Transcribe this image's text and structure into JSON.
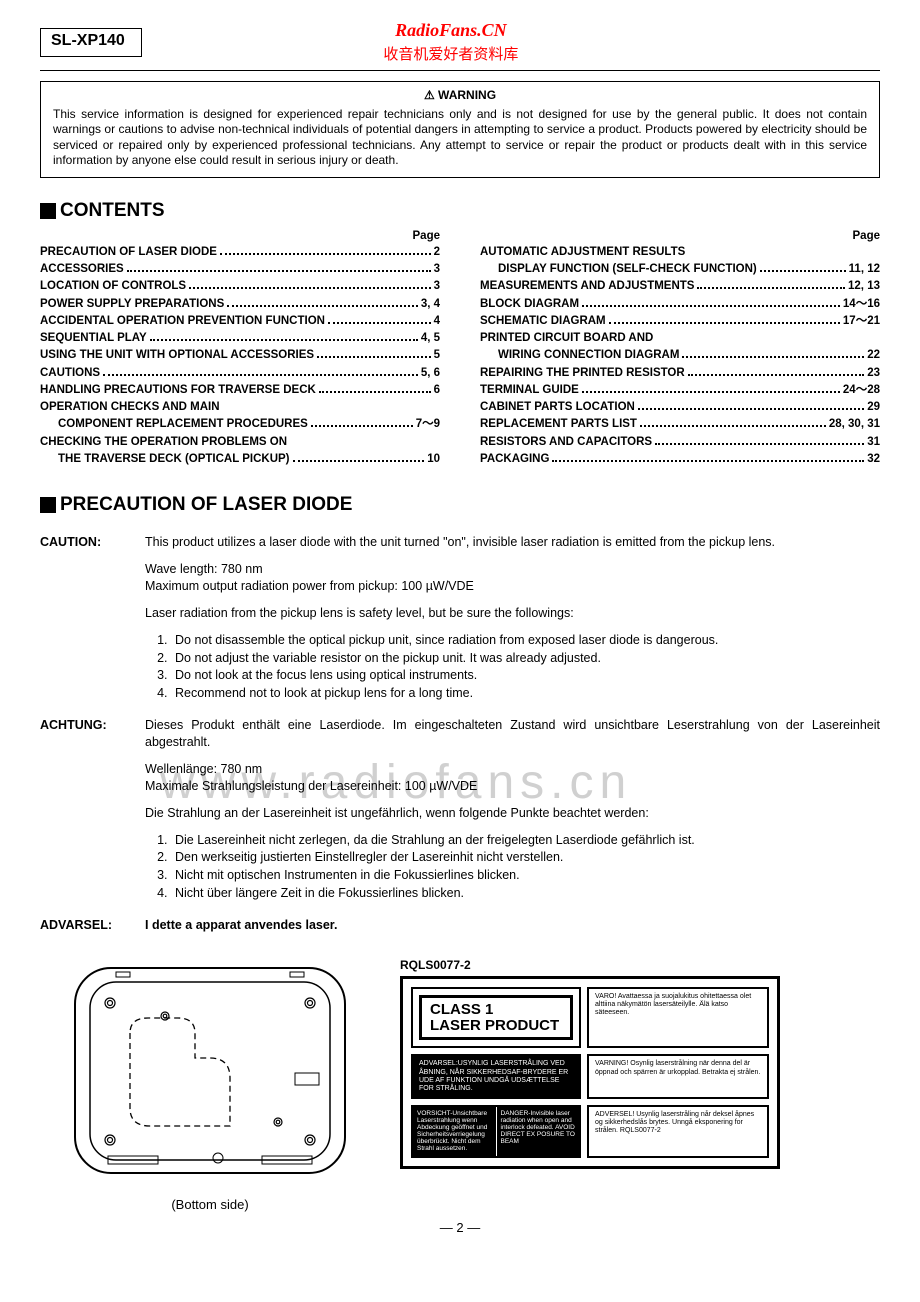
{
  "header": {
    "model": "SL-XP140",
    "site_name": "RadioFans.CN",
    "site_sub": "收音机爱好者资料库"
  },
  "warning": {
    "title": "⚠ WARNING",
    "body": "This service information is designed for experienced repair technicians only and is not designed for use by the general public. It does not contain warnings or cautions to advise non-technical individuals of potential dangers in attempting to service a product. Products powered by electricity should be serviced or repaired only by experienced professional technicians. Any attempt to service or repair the product or products dealt with in this service information by anyone else could result in serious injury or death."
  },
  "sections": {
    "contents": "CONTENTS",
    "precaution": "PRECAUTION OF LASER DIODE"
  },
  "toc": {
    "page_label": "Page",
    "left": [
      {
        "label": "PRECAUTION OF LASER DIODE",
        "page": "2"
      },
      {
        "label": "ACCESSORIES",
        "page": "3"
      },
      {
        "label": "LOCATION OF CONTROLS",
        "page": "3"
      },
      {
        "label": "POWER SUPPLY PREPARATIONS",
        "page": "3, 4"
      },
      {
        "label": "ACCIDENTAL OPERATION PREVENTION FUNCTION",
        "page": "4"
      },
      {
        "label": "SEQUENTIAL PLAY",
        "page": "4, 5"
      },
      {
        "label": "USING THE UNIT WITH OPTIONAL ACCESSORIES",
        "page": "5"
      },
      {
        "label": "CAUTIONS",
        "page": "5, 6"
      },
      {
        "label": "HANDLING PRECAUTIONS FOR TRAVERSE DECK",
        "page": "6"
      },
      {
        "label": "OPERATION CHECKS AND MAIN",
        "page": "",
        "nolead": true
      },
      {
        "label": "COMPONENT REPLACEMENT PROCEDURES",
        "page": "7～9",
        "indent": true
      },
      {
        "label": "CHECKING THE OPERATION PROBLEMS ON",
        "page": "",
        "nolead": true
      },
      {
        "label": "THE TRAVERSE DECK (OPTICAL PICKUP)",
        "page": "10",
        "indent": true
      }
    ],
    "right": [
      {
        "label": "AUTOMATIC ADJUSTMENT RESULTS",
        "page": "",
        "nolead": true
      },
      {
        "label": "DISPLAY FUNCTION (SELF-CHECK FUNCTION)",
        "page": "11, 12",
        "indent": true
      },
      {
        "label": "MEASUREMENTS AND ADJUSTMENTS",
        "page": "12, 13"
      },
      {
        "label": "BLOCK DIAGRAM",
        "page": "14～16"
      },
      {
        "label": "SCHEMATIC DIAGRAM",
        "page": "17～21"
      },
      {
        "label": "PRINTED CIRCUIT BOARD AND",
        "page": "",
        "nolead": true
      },
      {
        "label": "WIRING CONNECTION DIAGRAM",
        "page": "22",
        "indent": true
      },
      {
        "label": "REPAIRING THE PRINTED RESISTOR",
        "page": "23"
      },
      {
        "label": "TERMINAL GUIDE",
        "page": "24～28"
      },
      {
        "label": "CABINET PARTS LOCATION",
        "page": "29"
      },
      {
        "label": "REPLACEMENT PARTS LIST",
        "page": "28, 30, 31"
      },
      {
        "label": "RESISTORS AND CAPACITORS",
        "page": "31"
      },
      {
        "label": "PACKAGING",
        "page": "32"
      }
    ]
  },
  "precaution": {
    "caution_label": "CAUTION:",
    "caution_p1": "This product utilizes a laser diode with the unit turned \"on\", invisible laser radiation is emitted from the pickup lens.",
    "caution_p2": "Wave length: 780 nm",
    "caution_p3": "Maximum output radiation power from pickup: 100 µW/VDE",
    "caution_p4": "Laser radiation from the pickup lens is safety level, but be sure the followings:",
    "caution_list": [
      "Do not disassemble the optical pickup unit, since radiation from exposed laser diode is dangerous.",
      "Do not adjust the variable resistor on the pickup unit.   It was already adjusted.",
      "Do not look at the focus lens using optical instruments.",
      "Recommend not to look at pickup lens for a long time."
    ],
    "achtung_label": "ACHTUNG:",
    "achtung_p1": "Dieses Produkt enthält eine Laserdiode.  Im eingeschalteten Zustand wird unsichtbare Leserstrahlung von der Lasereinheit abgestrahlt.",
    "achtung_p2": "Wellenlänge: 780 nm",
    "achtung_p3": "Maximale Strahlungsleistung der Lasereinheit: 100 µW/VDE",
    "achtung_p4": "Die Strahlung an der Lasereinheit ist ungefährlich, wenn folgende Punkte beachtet werden:",
    "achtung_list": [
      "Die Lasereinheit nicht zerlegen, da die Strahlung an der freigelegten Laserdiode gefährlich ist.",
      "Den werkseitig justierten Einstellregler der Lasereinhit nicht verstellen.",
      "Nicht mit optischen Instrumenten in die Fokussierlines blicken.",
      "Nicht über längere Zeit in die Fokussierlines blicken."
    ],
    "advarsel_label": "ADVARSEL:",
    "advarsel_p1": "I dette a apparat anvendes laser."
  },
  "watermark": "www.radiofans.cn",
  "diagram": {
    "part_no": "RQLS0077-2",
    "bottom_caption": "(Bottom side)",
    "class1_line1": "CLASS 1",
    "class1_line2": "LASER PRODUCT",
    "varo": "VARO! Avattaessa ja suojalukitus ohitettaessa olet alttiina näkymätön lasersäteilylle. Älä katso säteeseen.",
    "advarsel_dk": "ADVARSEL:USYNLIG LASERSTRÅLING VED ÅBNING, NÅR SIKKERHEDSAF-BRYDERE ER UDE AF FUNKTION UNDGÅ UDSÆTTELSE FOR STRÅLING.",
    "varning": "VARNING! Osynlig laserstrålning när denna del är öppnad och spärren är urkopplad. Betrakta ej strålen.",
    "vorsicht": "VORSICHT-Unsichtbare Laserstrahlung wenn Abdeckung geöffnet und Sicherheitsverriegelung überbrückt. Nicht dem Strahl aussetzen.",
    "danger": "DANGER-Invisible laser radiation when open and interlock defeated. AVOID DIRECT EX POSURE TO BEAM",
    "advarsel_no": "ADVERSEL! Usynlig laserstråling når deksel åpnes og sikkerhedslås brytes. Unngå eksponering for strålen. RQLS0077-2"
  },
  "page_number": "— 2 —",
  "style": {
    "accent_color": "#ff0000",
    "text_color": "#000000",
    "bg_color": "#ffffff"
  }
}
